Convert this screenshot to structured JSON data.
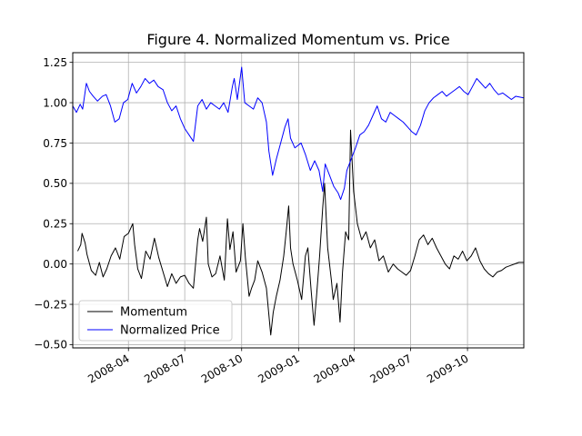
{
  "chart_data": {
    "type": "line",
    "title": "Figure 4. Normalized Momentum vs. Price",
    "xlabel": "",
    "ylabel": "",
    "grid": true,
    "legend_placement": "lower-left",
    "xlim": [
      "2008-01-02",
      "2009-12-31"
    ],
    "ylim": [
      -0.52,
      1.31
    ],
    "x_ticks": [
      "2008-04",
      "2008-07",
      "2008-10",
      "2009-01",
      "2009-04",
      "2009-07",
      "2009-10"
    ],
    "y_ticks": [
      "−0.50",
      "−0.25",
      "0.00",
      "0.25",
      "0.50",
      "0.75",
      "1.00",
      "1.25"
    ],
    "series": [
      {
        "name": "Momentum",
        "color": "#000000",
        "points": [
          [
            "2008-01-10",
            0.08
          ],
          [
            "2008-01-15",
            0.12
          ],
          [
            "2008-01-17",
            0.19
          ],
          [
            "2008-01-22",
            0.13
          ],
          [
            "2008-01-25",
            0.06
          ],
          [
            "2008-02-01",
            -0.04
          ],
          [
            "2008-02-08",
            -0.07
          ],
          [
            "2008-02-14",
            0.01
          ],
          [
            "2008-02-20",
            -0.08
          ],
          [
            "2008-02-26",
            -0.03
          ],
          [
            "2008-03-04",
            0.05
          ],
          [
            "2008-03-11",
            0.1
          ],
          [
            "2008-03-18",
            0.03
          ],
          [
            "2008-03-25",
            0.17
          ],
          [
            "2008-04-01",
            0.19
          ],
          [
            "2008-04-08",
            0.25
          ],
          [
            "2008-04-11",
            0.12
          ],
          [
            "2008-04-16",
            -0.03
          ],
          [
            "2008-04-22",
            -0.09
          ],
          [
            "2008-04-29",
            0.08
          ],
          [
            "2008-05-06",
            0.03
          ],
          [
            "2008-05-13",
            0.16
          ],
          [
            "2008-05-20",
            0.04
          ],
          [
            "2008-05-27",
            -0.05
          ],
          [
            "2008-06-03",
            -0.14
          ],
          [
            "2008-06-10",
            -0.06
          ],
          [
            "2008-06-17",
            -0.12
          ],
          [
            "2008-06-24",
            -0.08
          ],
          [
            "2008-07-01",
            -0.07
          ],
          [
            "2008-07-08",
            -0.12
          ],
          [
            "2008-07-15",
            -0.15
          ],
          [
            "2008-07-22",
            0.15
          ],
          [
            "2008-07-25",
            0.22
          ],
          [
            "2008-07-30",
            0.14
          ],
          [
            "2008-08-05",
            0.29
          ],
          [
            "2008-08-08",
            0.0
          ],
          [
            "2008-08-14",
            -0.08
          ],
          [
            "2008-08-20",
            -0.06
          ],
          [
            "2008-08-27",
            0.05
          ],
          [
            "2008-09-03",
            -0.1
          ],
          [
            "2008-09-08",
            0.28
          ],
          [
            "2008-09-12",
            0.09
          ],
          [
            "2008-09-17",
            0.2
          ],
          [
            "2008-09-22",
            -0.05
          ],
          [
            "2008-09-29",
            0.02
          ],
          [
            "2008-10-03",
            0.25
          ],
          [
            "2008-10-07",
            0.04
          ],
          [
            "2008-10-13",
            -0.2
          ],
          [
            "2008-10-17",
            -0.15
          ],
          [
            "2008-10-22",
            -0.1
          ],
          [
            "2008-10-27",
            0.02
          ],
          [
            "2008-11-03",
            -0.05
          ],
          [
            "2008-11-10",
            -0.15
          ],
          [
            "2008-11-17",
            -0.44
          ],
          [
            "2008-11-21",
            -0.3
          ],
          [
            "2008-11-26",
            -0.2
          ],
          [
            "2008-12-02",
            -0.1
          ],
          [
            "2008-12-08",
            0.05
          ],
          [
            "2008-12-12",
            0.2
          ],
          [
            "2008-12-16",
            0.36
          ],
          [
            "2008-12-19",
            0.1
          ],
          [
            "2008-12-23",
            0.0
          ],
          [
            "2008-12-30",
            -0.1
          ],
          [
            "2009-01-06",
            -0.22
          ],
          [
            "2009-01-12",
            0.05
          ],
          [
            "2009-01-16",
            0.1
          ],
          [
            "2009-01-21",
            -0.15
          ],
          [
            "2009-01-26",
            -0.38
          ],
          [
            "2009-01-30",
            -0.2
          ],
          [
            "2009-02-04",
            0.05
          ],
          [
            "2009-02-09",
            0.35
          ],
          [
            "2009-02-12",
            0.5
          ],
          [
            "2009-02-17",
            0.1
          ],
          [
            "2009-02-23",
            -0.1
          ],
          [
            "2009-02-26",
            -0.22
          ],
          [
            "2009-03-04",
            -0.12
          ],
          [
            "2009-03-09",
            -0.36
          ],
          [
            "2009-03-13",
            -0.05
          ],
          [
            "2009-03-18",
            0.2
          ],
          [
            "2009-03-23",
            0.15
          ],
          [
            "2009-03-26",
            0.83
          ],
          [
            "2009-03-31",
            0.45
          ],
          [
            "2009-04-06",
            0.25
          ],
          [
            "2009-04-13",
            0.15
          ],
          [
            "2009-04-20",
            0.2
          ],
          [
            "2009-04-27",
            0.1
          ],
          [
            "2009-05-04",
            0.15
          ],
          [
            "2009-05-11",
            0.02
          ],
          [
            "2009-05-18",
            0.05
          ],
          [
            "2009-05-26",
            -0.05
          ],
          [
            "2009-06-03",
            0.0
          ],
          [
            "2009-06-10",
            -0.03
          ],
          [
            "2009-06-17",
            -0.05
          ],
          [
            "2009-06-24",
            -0.07
          ],
          [
            "2009-07-01",
            -0.04
          ],
          [
            "2009-07-08",
            0.05
          ],
          [
            "2009-07-15",
            0.15
          ],
          [
            "2009-07-22",
            0.18
          ],
          [
            "2009-07-29",
            0.12
          ],
          [
            "2009-08-05",
            0.16
          ],
          [
            "2009-08-12",
            0.1
          ],
          [
            "2009-08-19",
            0.05
          ],
          [
            "2009-08-26",
            0.0
          ],
          [
            "2009-09-02",
            -0.03
          ],
          [
            "2009-09-09",
            0.05
          ],
          [
            "2009-09-16",
            0.03
          ],
          [
            "2009-09-23",
            0.08
          ],
          [
            "2009-09-30",
            0.02
          ],
          [
            "2009-10-07",
            0.05
          ],
          [
            "2009-10-14",
            0.1
          ],
          [
            "2009-10-21",
            0.02
          ],
          [
            "2009-10-28",
            -0.03
          ],
          [
            "2009-11-04",
            -0.06
          ],
          [
            "2009-11-11",
            -0.08
          ],
          [
            "2009-11-18",
            -0.05
          ],
          [
            "2009-11-25",
            -0.04
          ],
          [
            "2009-12-02",
            -0.02
          ],
          [
            "2009-12-09",
            -0.01
          ],
          [
            "2009-12-16",
            0.0
          ],
          [
            "2009-12-23",
            0.01
          ],
          [
            "2009-12-31",
            0.01
          ]
        ]
      },
      {
        "name": "Normalized Price",
        "color": "#0000ff",
        "points": [
          [
            "2008-01-02",
            0.98
          ],
          [
            "2008-01-08",
            0.94
          ],
          [
            "2008-01-14",
            0.99
          ],
          [
            "2008-01-18",
            0.96
          ],
          [
            "2008-01-24",
            1.12
          ],
          [
            "2008-01-29",
            1.07
          ],
          [
            "2008-02-04",
            1.04
          ],
          [
            "2008-02-11",
            1.01
          ],
          [
            "2008-02-19",
            1.04
          ],
          [
            "2008-02-25",
            1.05
          ],
          [
            "2008-03-03",
            0.98
          ],
          [
            "2008-03-10",
            0.88
          ],
          [
            "2008-03-17",
            0.9
          ],
          [
            "2008-03-24",
            1.0
          ],
          [
            "2008-03-31",
            1.02
          ],
          [
            "2008-04-07",
            1.12
          ],
          [
            "2008-04-14",
            1.06
          ],
          [
            "2008-04-21",
            1.1
          ],
          [
            "2008-04-28",
            1.15
          ],
          [
            "2008-05-05",
            1.12
          ],
          [
            "2008-05-12",
            1.14
          ],
          [
            "2008-05-19",
            1.1
          ],
          [
            "2008-05-27",
            1.08
          ],
          [
            "2008-06-03",
            1.0
          ],
          [
            "2008-06-10",
            0.95
          ],
          [
            "2008-06-17",
            0.98
          ],
          [
            "2008-06-24",
            0.9
          ],
          [
            "2008-07-01",
            0.84
          ],
          [
            "2008-07-08",
            0.8
          ],
          [
            "2008-07-15",
            0.76
          ],
          [
            "2008-07-22",
            0.98
          ],
          [
            "2008-07-29",
            1.02
          ],
          [
            "2008-08-05",
            0.96
          ],
          [
            "2008-08-12",
            1.0
          ],
          [
            "2008-08-19",
            0.98
          ],
          [
            "2008-08-26",
            0.96
          ],
          [
            "2008-09-02",
            1.0
          ],
          [
            "2008-09-09",
            0.94
          ],
          [
            "2008-09-16",
            1.1
          ],
          [
            "2008-09-19",
            1.15
          ],
          [
            "2008-09-24",
            1.02
          ],
          [
            "2008-10-01",
            1.22
          ],
          [
            "2008-10-06",
            1.0
          ],
          [
            "2008-10-13",
            0.98
          ],
          [
            "2008-10-20",
            0.96
          ],
          [
            "2008-10-27",
            1.03
          ],
          [
            "2008-11-03",
            1.0
          ],
          [
            "2008-11-10",
            0.88
          ],
          [
            "2008-11-14",
            0.7
          ],
          [
            "2008-11-20",
            0.55
          ],
          [
            "2008-11-26",
            0.65
          ],
          [
            "2008-12-03",
            0.75
          ],
          [
            "2008-12-10",
            0.85
          ],
          [
            "2008-12-15",
            0.9
          ],
          [
            "2008-12-19",
            0.78
          ],
          [
            "2008-12-26",
            0.72
          ],
          [
            "2009-01-05",
            0.75
          ],
          [
            "2009-01-12",
            0.68
          ],
          [
            "2009-01-20",
            0.58
          ],
          [
            "2009-01-27",
            0.64
          ],
          [
            "2009-02-03",
            0.58
          ],
          [
            "2009-02-09",
            0.45
          ],
          [
            "2009-02-13",
            0.62
          ],
          [
            "2009-02-20",
            0.55
          ],
          [
            "2009-02-27",
            0.48
          ],
          [
            "2009-03-06",
            0.44
          ],
          [
            "2009-03-10",
            0.4
          ],
          [
            "2009-03-16",
            0.47
          ],
          [
            "2009-03-20",
            0.58
          ],
          [
            "2009-03-27",
            0.65
          ],
          [
            "2009-04-03",
            0.72
          ],
          [
            "2009-04-10",
            0.8
          ],
          [
            "2009-04-17",
            0.82
          ],
          [
            "2009-04-24",
            0.86
          ],
          [
            "2009-05-01",
            0.92
          ],
          [
            "2009-05-08",
            0.98
          ],
          [
            "2009-05-15",
            0.9
          ],
          [
            "2009-05-22",
            0.88
          ],
          [
            "2009-05-29",
            0.94
          ],
          [
            "2009-06-05",
            0.92
          ],
          [
            "2009-06-12",
            0.9
          ],
          [
            "2009-06-19",
            0.88
          ],
          [
            "2009-06-26",
            0.85
          ],
          [
            "2009-07-03",
            0.82
          ],
          [
            "2009-07-10",
            0.8
          ],
          [
            "2009-07-17",
            0.86
          ],
          [
            "2009-07-24",
            0.95
          ],
          [
            "2009-07-31",
            1.0
          ],
          [
            "2009-08-07",
            1.03
          ],
          [
            "2009-08-14",
            1.05
          ],
          [
            "2009-08-21",
            1.07
          ],
          [
            "2009-08-28",
            1.04
          ],
          [
            "2009-09-04",
            1.06
          ],
          [
            "2009-09-11",
            1.08
          ],
          [
            "2009-09-18",
            1.1
          ],
          [
            "2009-09-25",
            1.07
          ],
          [
            "2009-10-02",
            1.05
          ],
          [
            "2009-10-09",
            1.1
          ],
          [
            "2009-10-16",
            1.15
          ],
          [
            "2009-10-23",
            1.12
          ],
          [
            "2009-10-30",
            1.09
          ],
          [
            "2009-11-06",
            1.12
          ],
          [
            "2009-11-13",
            1.08
          ],
          [
            "2009-11-20",
            1.05
          ],
          [
            "2009-11-27",
            1.06
          ],
          [
            "2009-12-04",
            1.04
          ],
          [
            "2009-12-11",
            1.02
          ],
          [
            "2009-12-18",
            1.04
          ],
          [
            "2009-12-31",
            1.03
          ]
        ]
      }
    ]
  }
}
